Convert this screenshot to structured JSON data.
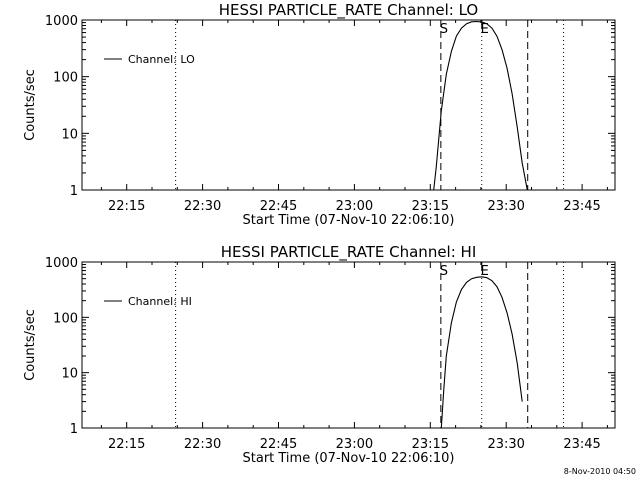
{
  "figure": {
    "timestamp": "8-Nov-2010 04:50"
  },
  "chart_data": [
    {
      "type": "line",
      "title": "HESSI PARTICLE_RATE Channel: LO",
      "xlabel": "Start Time (07-Nov-10 22:06:10)",
      "ylabel": "Counts/sec",
      "x_tick_labels": [
        "22:15",
        "22:30",
        "22:45",
        "23:00",
        "23:15",
        "23:30",
        "23:45"
      ],
      "y_tick_labels": [
        "1",
        "10",
        "100",
        "1000"
      ],
      "y_scale": "log",
      "xlim": [
        "22:06:10",
        "23:51:30"
      ],
      "ylim": [
        1,
        1000
      ],
      "legend": {
        "position": "top-left",
        "entries": [
          "Channel: LO"
        ]
      },
      "grid": false,
      "markers": [
        {
          "label": "",
          "time": "22:24:40",
          "style": "dotted"
        },
        {
          "label": "S",
          "time": "23:17:05",
          "style": "dashed"
        },
        {
          "label": "",
          "time": "23:25:10",
          "style": "dotted"
        },
        {
          "label": "E",
          "time": "23:25:10",
          "style": "solid-short"
        },
        {
          "label": "",
          "time": "23:34:15",
          "style": "dashed"
        },
        {
          "label": "",
          "time": "23:41:20",
          "style": "dotted"
        }
      ],
      "series": [
        {
          "name": "Channel: LO",
          "x": [
            "23:15:40",
            "23:16:10",
            "23:17:10",
            "23:18:10",
            "23:19:10",
            "23:20:10",
            "23:21:10",
            "23:22:10",
            "23:23:10",
            "23:24:10",
            "23:25:10",
            "23:26:10",
            "23:27:10",
            "23:28:10",
            "23:29:10",
            "23:30:10",
            "23:31:10",
            "23:32:10",
            "23:33:10",
            "23:34:10"
          ],
          "y": [
            1,
            2.5,
            25,
            110,
            280,
            520,
            720,
            860,
            930,
            940,
            920,
            860,
            720,
            520,
            300,
            140,
            50,
            13,
            3,
            1
          ]
        }
      ]
    },
    {
      "type": "line",
      "title": "HESSI PARTICLE_RATE Channel: HI",
      "xlabel": "Start Time (07-Nov-10 22:06:10)",
      "ylabel": "Counts/sec",
      "x_tick_labels": [
        "22:15",
        "22:30",
        "22:45",
        "23:00",
        "23:15",
        "23:30",
        "23:45"
      ],
      "y_tick_labels": [
        "1",
        "10",
        "100",
        "1000"
      ],
      "y_scale": "log",
      "xlim": [
        "22:06:10",
        "23:51:30"
      ],
      "ylim": [
        1,
        1000
      ],
      "legend": {
        "position": "top-left",
        "entries": [
          "Channel: HI"
        ]
      },
      "grid": false,
      "markers": [
        {
          "label": "",
          "time": "22:24:40",
          "style": "dotted"
        },
        {
          "label": "S",
          "time": "23:17:05",
          "style": "dashed"
        },
        {
          "label": "",
          "time": "23:25:10",
          "style": "dotted"
        },
        {
          "label": "E",
          "time": "23:25:10",
          "style": "solid-short"
        },
        {
          "label": "",
          "time": "23:34:15",
          "style": "dashed"
        },
        {
          "label": "",
          "time": "23:41:20",
          "style": "dotted"
        }
      ],
      "series": [
        {
          "name": "Channel: HI",
          "x": [
            "23:17:10",
            "23:17:40",
            "23:18:10",
            "23:19:10",
            "23:20:10",
            "23:21:10",
            "23:22:10",
            "23:23:10",
            "23:24:10",
            "23:25:10",
            "23:26:10",
            "23:27:10",
            "23:28:10",
            "23:29:10",
            "23:30:10",
            "23:31:10",
            "23:32:10",
            "23:33:10"
          ],
          "y": [
            1,
            5,
            20,
            80,
            190,
            320,
            430,
            500,
            530,
            540,
            520,
            460,
            360,
            230,
            120,
            50,
            15,
            3
          ]
        }
      ]
    }
  ]
}
